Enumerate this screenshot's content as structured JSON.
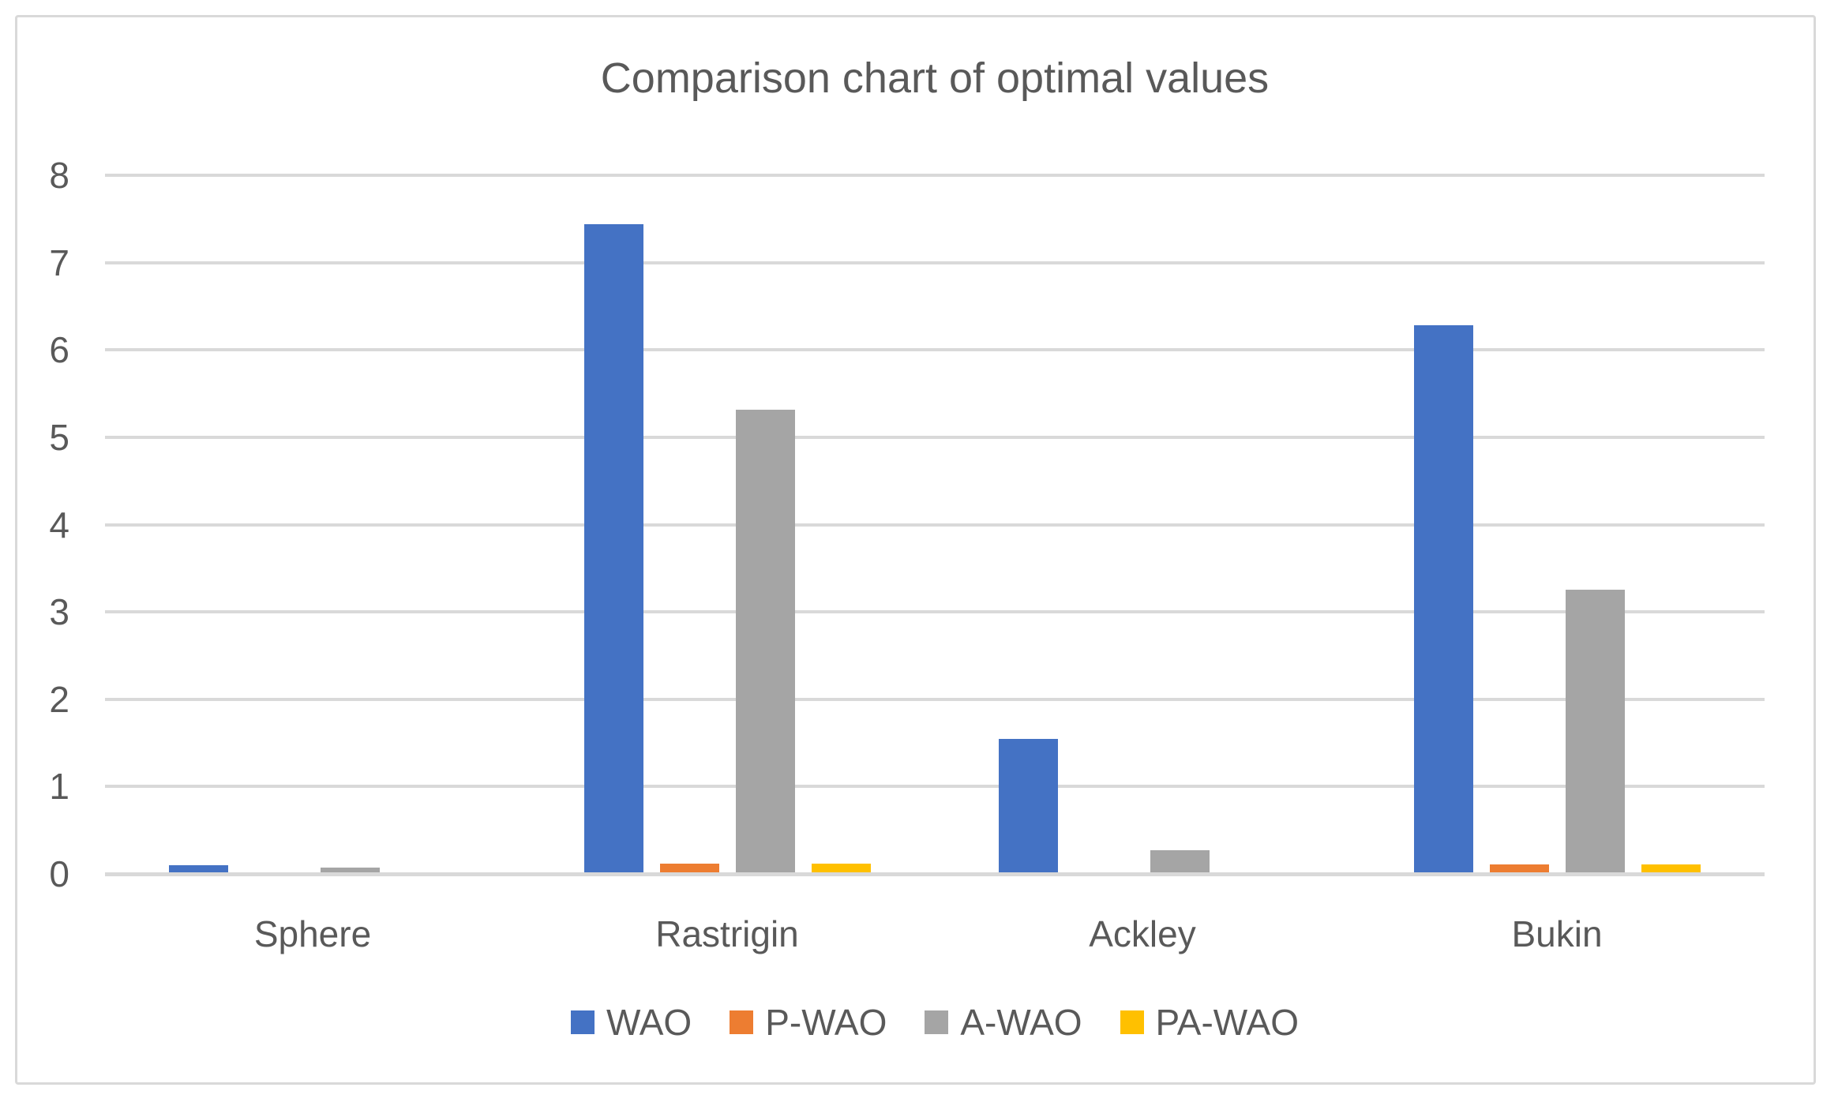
{
  "figure": {
    "title": "Comparison chart of optimal values"
  },
  "chart_data": {
    "type": "bar",
    "title": "Comparison chart of optimal values",
    "categories": [
      "Sphere",
      "Rastrigin",
      "Ackley",
      "Bukin"
    ],
    "series": [
      {
        "name": "WAO",
        "color": "#4472C4",
        "values": [
          0.08,
          7.42,
          1.53,
          6.26
        ]
      },
      {
        "name": "P-WAO",
        "color": "#ED7D31",
        "values": [
          0,
          0.1,
          0,
          0.09
        ]
      },
      {
        "name": "A-WAO",
        "color": "#A5A5A5",
        "values": [
          0.05,
          5.3,
          0.25,
          3.24
        ]
      },
      {
        "name": "PA-WAO",
        "color": "#FFC000",
        "values": [
          0,
          0.1,
          0,
          0.09
        ]
      }
    ],
    "xlabel": "",
    "ylabel": "",
    "ylim": [
      0,
      8
    ],
    "yticks": [
      0,
      1,
      2,
      3,
      4,
      5,
      6,
      7,
      8
    ],
    "grid": "horizontal",
    "legend_position": "bottom",
    "colors": {
      "gridline": "#D9D9D9",
      "axis_line": "#D9D9D9",
      "border": "#D9D9D9",
      "text": "#595959",
      "background": "#FFFFFF"
    }
  }
}
